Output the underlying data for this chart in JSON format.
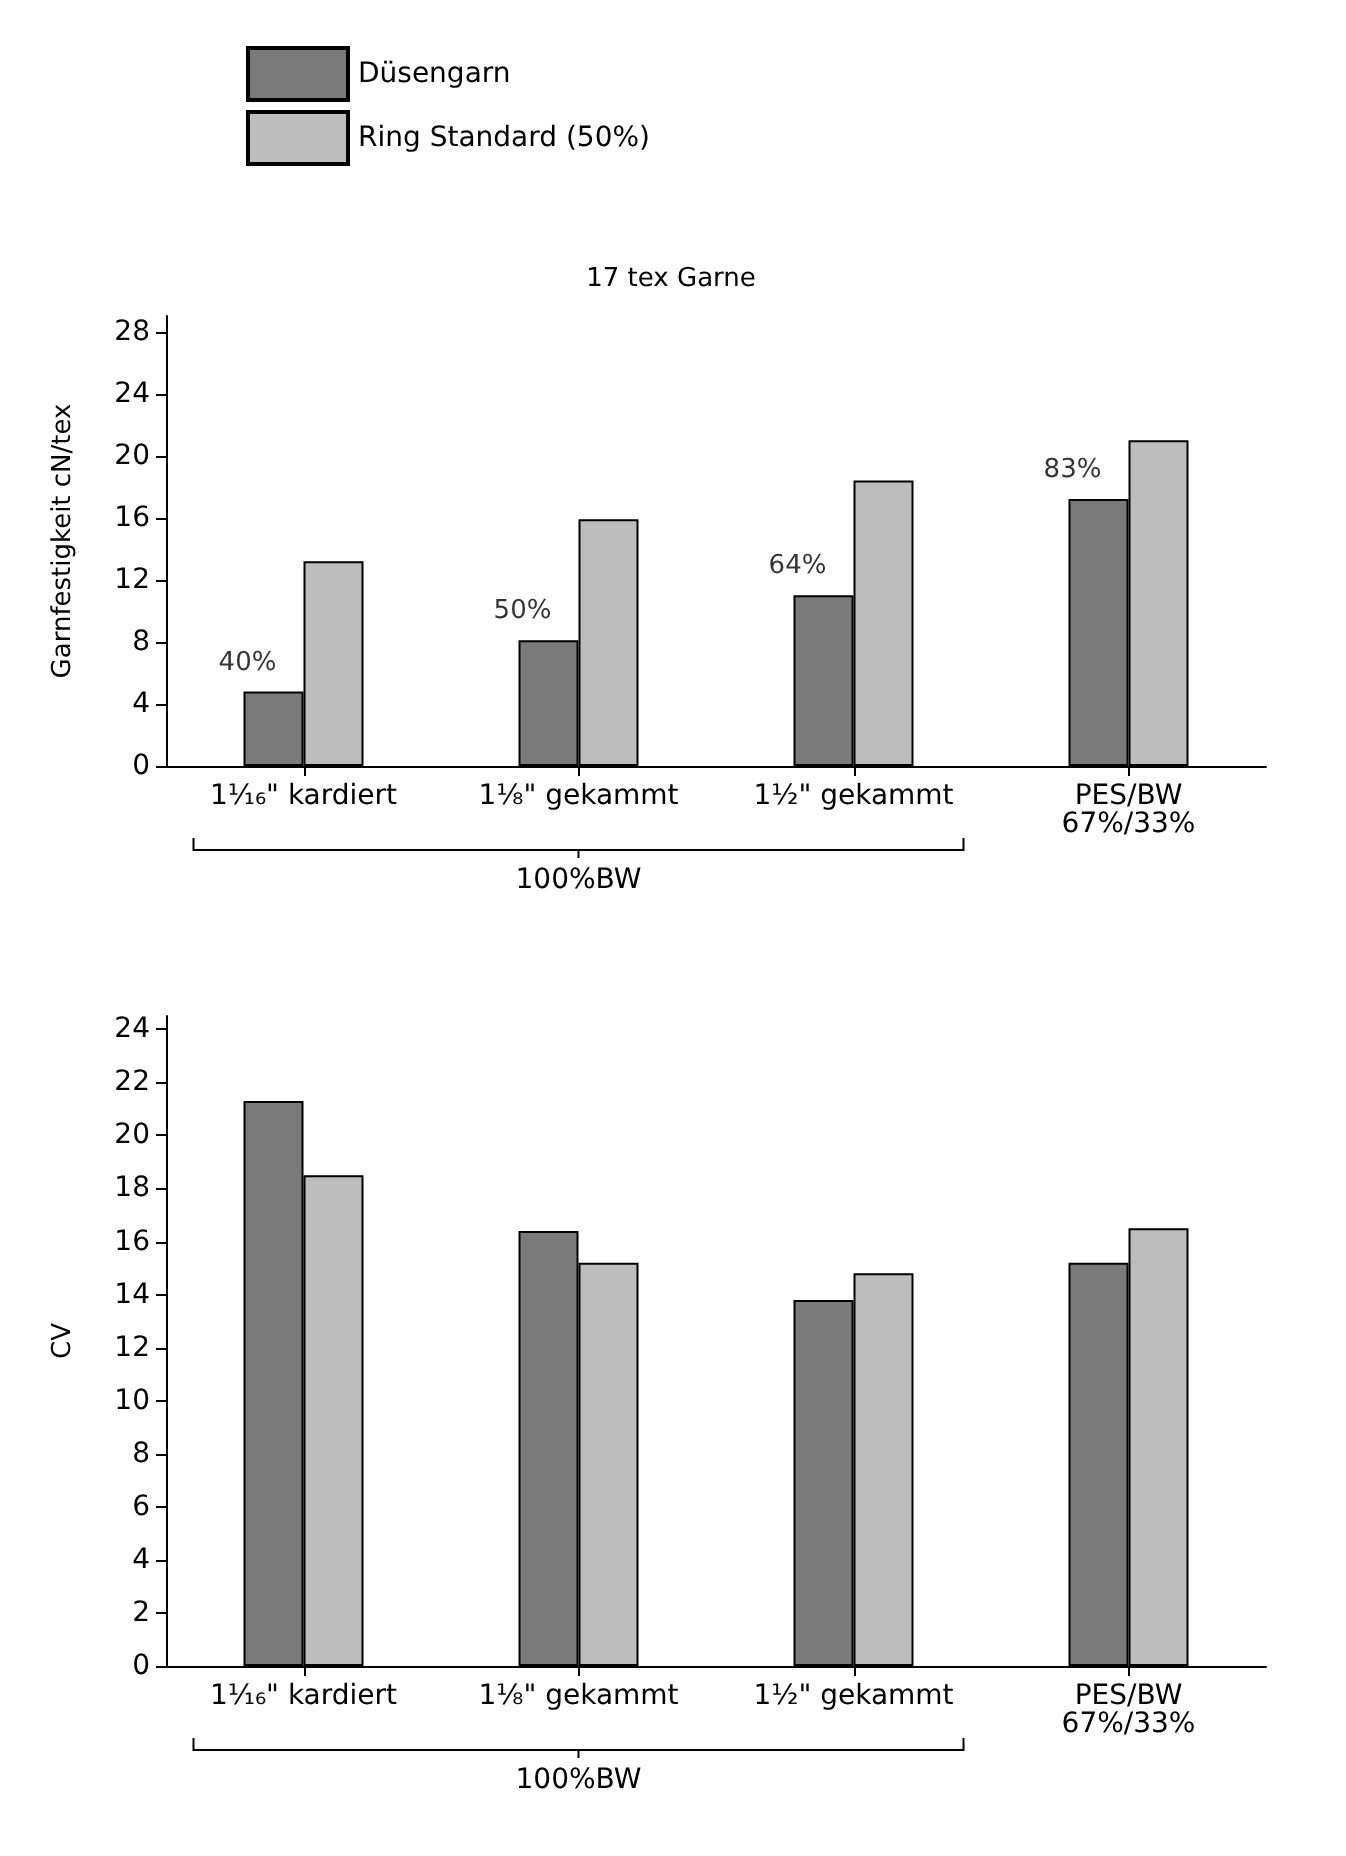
{
  "chart_data": [
    {
      "type": "bar",
      "title": "17 tex Garne",
      "ylabel": "Garnfestigkeit cN/tex",
      "categories": [
        "1¹⁄₁₆\" kardiert",
        "1⅛\" gekammt",
        "1½\" gekammt",
        "PES/BW\n67%/33%"
      ],
      "series": [
        {
          "name": "Düsengarn",
          "color": "#7a7a7a",
          "values": [
            4.8,
            8.1,
            11.0,
            17.2
          ]
        },
        {
          "name": "Ring Standard (50%)",
          "color": "#bdbdbd",
          "values": [
            13.2,
            15.9,
            18.4,
            21.0
          ]
        }
      ],
      "annotations": [
        {
          "text": "40%",
          "x": "1¹⁄₁₆\" kardiert",
          "y": 4.8
        },
        {
          "text": "50%",
          "x": "1⅛\" gekammt",
          "y": 8.1
        },
        {
          "text": "64%",
          "x": "1½\" gekammt",
          "y": 11.0
        },
        {
          "text": "83%",
          "x": "PES/BW\n67%/33%",
          "y": 17.2
        },
        "100%BW"
      ],
      "ylim": [
        0,
        29
      ],
      "yticks": [
        0,
        4,
        8,
        12,
        16,
        20,
        24,
        28
      ],
      "grid": false,
      "legend": "top left"
    },
    {
      "type": "bar",
      "ylabel": "CV",
      "categories": [
        "1¹⁄₁₆\" kardiert",
        "1⅛\" gekammt",
        "1½\" gekammt",
        "PES/BW\n67%/33%"
      ],
      "series": [
        {
          "color": "#7a7a7a",
          "values": [
            21.3,
            16.4,
            13.8,
            15.2
          ]
        },
        {
          "color": "#bdbdbd",
          "values": [
            18.5,
            15.2,
            14.8,
            16.5
          ]
        }
      ],
      "annotations": [
        "100%BW"
      ],
      "ylim": [
        0,
        24.5
      ],
      "yticks": [
        0,
        2,
        4,
        6,
        8,
        10,
        12,
        14,
        16,
        18,
        20,
        22,
        24
      ],
      "grid": false,
      "legend": false
    }
  ]
}
